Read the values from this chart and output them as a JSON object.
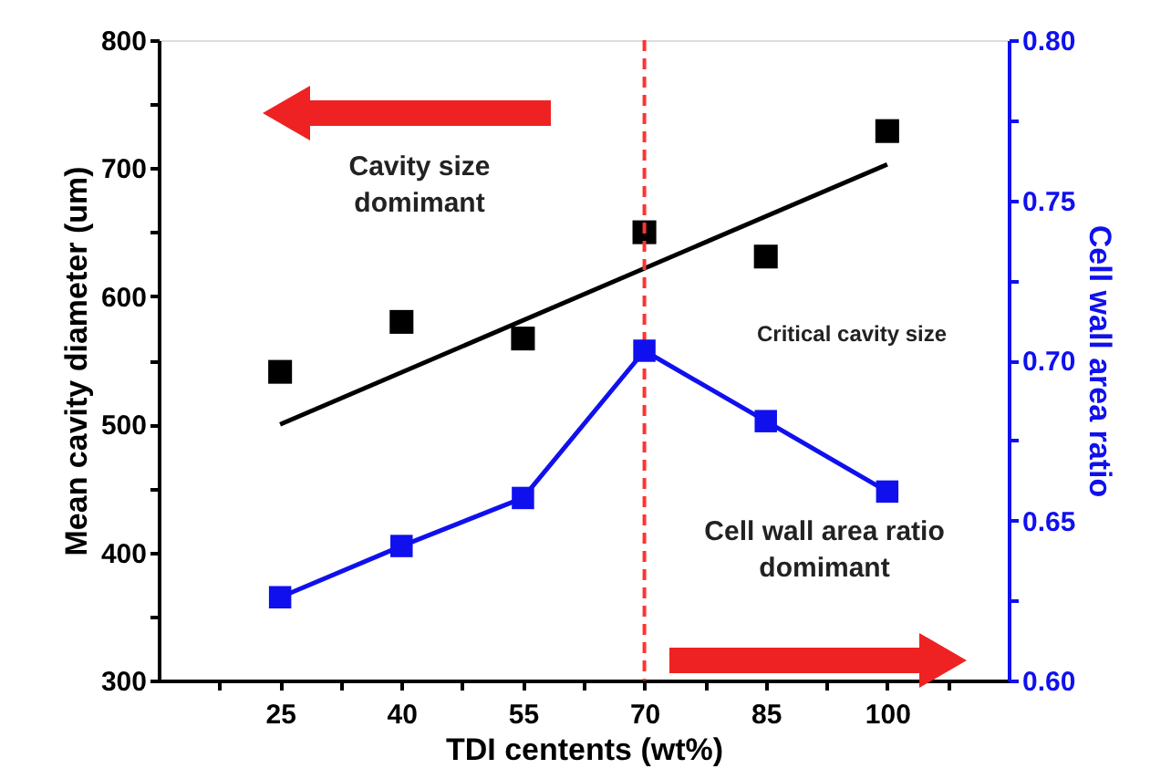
{
  "chart_data": {
    "type": "scatter",
    "xlabel": "TDI centents (wt%)",
    "ylabel": "Mean cavity diameter (um)",
    "y2label": "Cell wall area ratio",
    "x": [
      25,
      40,
      55,
      70,
      85,
      100
    ],
    "xlim": [
      10,
      115
    ],
    "xticks": [
      {
        "value": 17.5,
        "label": null
      },
      25,
      {
        "value": 32.5,
        "label": null
      },
      40,
      {
        "value": 47.5,
        "label": null
      },
      55,
      {
        "value": 62.5,
        "label": null
      },
      70,
      {
        "value": 77.5,
        "label": null
      },
      85,
      {
        "value": 92.5,
        "label": null
      },
      100,
      {
        "value": 107.5,
        "label": null
      }
    ],
    "ylim": [
      300,
      800
    ],
    "yticks": [
      300,
      {
        "value": 350,
        "label": null
      },
      400,
      {
        "value": 450,
        "label": null
      },
      500,
      {
        "value": 550,
        "label": null
      },
      600,
      {
        "value": 650,
        "label": null
      },
      700,
      {
        "value": 750,
        "label": null
      },
      800
    ],
    "y2lim": [
      0.6,
      0.8
    ],
    "y2ticks": [
      {
        "value": 0.6,
        "label": "0.60"
      },
      {
        "value": 0.625,
        "label": null
      },
      {
        "value": 0.65,
        "label": "0.65"
      },
      {
        "value": 0.675,
        "label": null
      },
      {
        "value": 0.7,
        "label": "0.70"
      },
      {
        "value": 0.725,
        "label": null
      },
      {
        "value": 0.75,
        "label": "0.75"
      },
      {
        "value": 0.775,
        "label": null
      },
      {
        "value": 0.8,
        "label": "0.80"
      }
    ],
    "series": [
      {
        "color": "#000000",
        "marker": "square",
        "values": [
          541,
          580,
          567,
          650,
          631,
          729
        ]
      },
      {
        "type": "line",
        "color": "#000000",
        "marker": "none",
        "x": [
          25,
          100
        ],
        "values": [
          500,
          703
        ]
      },
      {
        "type": "line",
        "color": "#1010ee",
        "marker": "square",
        "axis": "y2",
        "values": [
          0.626,
          0.642,
          0.657,
          0.703,
          0.681,
          0.659
        ]
      }
    ],
    "ref_lines": [
      {
        "axis": "x",
        "value": 70,
        "color": "#ff3333",
        "line_style": "dashed"
      }
    ],
    "annotations": [
      "Cavity size domimant",
      "Critical cavity size",
      "Cell wall area ratio domimant"
    ],
    "grid": false
  }
}
